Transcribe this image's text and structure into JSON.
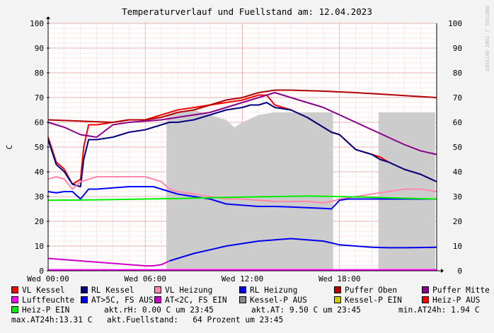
{
  "chart_data": {
    "type": "line",
    "title": "Temperaturverlauf und Fuellstand am: 12.04.2023",
    "ylabel": "C",
    "watermark": "RRDTOOL / TOBI OETIKER",
    "ylim": [
      0,
      100
    ],
    "y_ticks": [
      "0",
      "10",
      "20",
      "30",
      "40",
      "50",
      "60",
      "70",
      "80",
      "90",
      "100"
    ],
    "x_range_hours": [
      0,
      24
    ],
    "x_ticks": [
      {
        "hour": 0,
        "label": "Wed 00:00"
      },
      {
        "hour": 6,
        "label": "Wed 06:00"
      },
      {
        "hour": 12,
        "label": "Wed 12:00"
      },
      {
        "hour": 18,
        "label": "Wed 18:00"
      }
    ],
    "grid": true,
    "fill_area": {
      "name": "Fuellstand",
      "color": "#cccccc",
      "x": [
        0,
        7.3,
        7.31,
        8,
        9,
        10,
        11,
        11.5,
        12,
        13,
        14,
        15,
        16,
        17,
        17.6,
        17.61,
        20.4,
        20.41,
        21,
        22,
        23,
        23.9,
        23.91,
        24
      ],
      "y": [
        0,
        0,
        63,
        64,
        65,
        63,
        61,
        58,
        60,
        63,
        64,
        64,
        64,
        64,
        64,
        0,
        0,
        64,
        64,
        64,
        64,
        64,
        0,
        0
      ]
    },
    "series": [
      {
        "name": "VL Kessel",
        "color": "#ff0000",
        "width": 2,
        "x": [
          0,
          0.5,
          1,
          1.5,
          2,
          2.2,
          2.5,
          3,
          4,
          5,
          6,
          6.5,
          7,
          7.5,
          8,
          9,
          10,
          11,
          12,
          12.5,
          13,
          13.5,
          14,
          15,
          16,
          16.5,
          17,
          17.5,
          18,
          18.5,
          19,
          19.5,
          20,
          20.5,
          21,
          22,
          23,
          24
        ],
        "y": [
          54,
          44,
          41,
          35,
          37,
          50,
          59,
          59,
          60,
          61,
          61,
          62,
          63,
          64,
          65,
          66,
          67,
          68,
          69,
          70,
          71,
          71,
          67,
          65,
          62,
          60,
          58,
          56,
          55,
          52,
          49,
          48,
          47,
          46,
          44,
          41,
          39,
          36
        ]
      },
      {
        "name": "RL Kessel",
        "color": "#000080",
        "width": 2,
        "x": [
          0,
          0.5,
          1,
          1.5,
          2,
          2.2,
          2.5,
          3,
          4,
          5,
          6,
          6.5,
          7,
          7.5,
          8,
          9,
          10,
          11,
          12,
          12.5,
          13,
          13.5,
          14,
          15,
          16,
          16.5,
          17,
          17.5,
          18,
          18.5,
          19,
          19.5,
          20,
          20.5,
          21,
          22,
          23,
          24
        ],
        "y": [
          53,
          43,
          40,
          35,
          34,
          45,
          53,
          53,
          54,
          56,
          57,
          58,
          59,
          60,
          60,
          61,
          63,
          65,
          66,
          67,
          67,
          68,
          66,
          65,
          62,
          60,
          58,
          56,
          55,
          52,
          49,
          48,
          47,
          45,
          44,
          41,
          39,
          36
        ]
      },
      {
        "name": "VL Heizung",
        "color": "#ff88aa",
        "width": 2,
        "x": [
          0,
          0.5,
          1,
          1.5,
          2,
          3,
          4,
          5,
          6,
          6.5,
          7,
          7.5,
          8,
          9,
          10,
          11,
          12,
          13,
          14,
          15,
          16,
          17,
          17.5,
          18,
          19,
          20,
          21,
          22,
          23,
          24
        ],
        "y": [
          37,
          38,
          37,
          33,
          36,
          38,
          38,
          38,
          38,
          37,
          36,
          33,
          32,
          31,
          30,
          29,
          29,
          28.5,
          28,
          28,
          28,
          27.5,
          28,
          29,
          30,
          31,
          32,
          33,
          33,
          32
        ]
      },
      {
        "name": "RL Heizung",
        "color": "#0000ff",
        "width": 2,
        "x": [
          0,
          0.5,
          1,
          1.5,
          2,
          2.5,
          3,
          4,
          5,
          6,
          6.5,
          7,
          7.5,
          8,
          9,
          10,
          11,
          12,
          13,
          14,
          15,
          16,
          17,
          17.5,
          18,
          18.5,
          19,
          20,
          21,
          22,
          23,
          24
        ],
        "y": [
          32,
          31.5,
          32,
          32,
          29,
          33,
          33,
          33.5,
          34,
          34,
          34,
          33,
          32,
          31,
          30,
          29,
          27,
          26.5,
          26,
          26,
          25.8,
          25.5,
          25.2,
          25,
          28.5,
          29,
          29,
          29,
          29,
          29,
          29,
          29
        ]
      },
      {
        "name": "Puffer Oben",
        "color": "#b00000",
        "width": 2,
        "x": [
          0,
          2,
          4,
          5,
          6,
          7,
          8,
          9,
          10,
          11,
          12,
          13,
          14,
          15,
          16,
          17,
          18,
          19,
          20,
          21,
          22,
          23,
          24
        ],
        "y": [
          61,
          60.5,
          60,
          61,
          61,
          62,
          64,
          65,
          67,
          69,
          70,
          72,
          73,
          73,
          72.8,
          72.6,
          72.3,
          72,
          71.6,
          71.2,
          70.8,
          70.4,
          70
        ]
      },
      {
        "name": "Puffer Mitte",
        "color": "#880088",
        "width": 2,
        "x": [
          0,
          1,
          2,
          3,
          4,
          5,
          6,
          7,
          8,
          9,
          10,
          11,
          12,
          13,
          14,
          15,
          16,
          17,
          18,
          19,
          20,
          21,
          22,
          23,
          24
        ],
        "y": [
          60,
          58,
          55,
          54,
          59,
          60,
          60.5,
          61,
          62,
          63,
          64,
          66,
          68,
          70,
          72,
          70,
          68,
          66,
          63,
          60,
          57,
          54,
          51,
          48.5,
          47
        ]
      },
      {
        "name": "Luftfeuchte",
        "color": "#ff00ff",
        "width": 2,
        "x": [
          0,
          24
        ],
        "y": [
          0.4,
          0.4
        ]
      },
      {
        "name": "AT>5C, FS AUS",
        "color": "#0000ee",
        "width": 2,
        "x": [
          0,
          1,
          2,
          3,
          4,
          5,
          6,
          6.5,
          7,
          7.5,
          8,
          9,
          10,
          11,
          12,
          13,
          14,
          15,
          16,
          17,
          18,
          19,
          20,
          21,
          22,
          23,
          24
        ],
        "y": [
          null,
          null,
          null,
          null,
          null,
          null,
          null,
          null,
          null,
          4,
          5,
          7,
          8.5,
          10,
          11,
          12,
          12.5,
          13,
          12.5,
          12,
          10.5,
          10,
          9.5,
          9.3,
          9.3,
          9.4,
          9.5
        ]
      },
      {
        "name": "AT<2C, FS EIN",
        "color": "#cc00cc",
        "width": 2,
        "x": [
          0,
          1,
          2,
          3,
          4,
          5,
          6,
          6.5,
          7,
          7.5
        ],
        "y": [
          5,
          4.5,
          4,
          3.5,
          3,
          2.5,
          2,
          2,
          2.5,
          4
        ]
      },
      {
        "name": "Kessel-P AUS",
        "color": "#888888",
        "width": 2,
        "x": [],
        "y": []
      },
      {
        "name": "Kessel-P EIN",
        "color": "#cccc00",
        "width": 2,
        "x": [],
        "y": []
      },
      {
        "name": "Heiz-P AUS",
        "color": "#ff0000",
        "width": 2,
        "x": [],
        "y": []
      },
      {
        "name": "Heiz-P EIN",
        "color": "#00ee00",
        "width": 2,
        "x": [
          0,
          2,
          4,
          6,
          8,
          10,
          12,
          14,
          16,
          18,
          20,
          22,
          24
        ],
        "y": [
          28.5,
          28.6,
          28.8,
          29,
          29.2,
          29.5,
          29.8,
          30,
          30.2,
          30,
          29.7,
          29.3,
          29
        ]
      }
    ]
  },
  "legend": [
    [
      {
        "label": "VL Kessel",
        "color": "#ff0000"
      },
      {
        "label": "RL Kessel",
        "color": "#000080"
      },
      {
        "label": "VL Heizung",
        "color": "#ff88aa"
      },
      {
        "label": "RL Heizung",
        "color": "#0000ff"
      },
      {
        "label": "Puffer Oben",
        "color": "#b00000"
      },
      {
        "label": "Puffer Mitte",
        "color": "#880088"
      }
    ],
    [
      {
        "label": "Luftfeuchte",
        "color": "#ff00ff"
      },
      {
        "label": "AT>5C, FS AUS",
        "color": "#0000ee"
      },
      {
        "label": "AT<2C, FS EIN",
        "color": "#cc00cc"
      },
      {
        "label": "Kessel-P AUS",
        "color": "#888888"
      },
      {
        "label": "Kessel-P EIN",
        "color": "#cccc00"
      },
      {
        "label": "Heiz-P AUS",
        "color": "#ff0000"
      }
    ],
    [
      {
        "label": "Heiz-P EIN",
        "color": "#00ee00"
      }
    ]
  ],
  "info": {
    "rh": "akt.rH: 0.00 C um 23:45",
    "at": "akt.AT: 9.50 C um 23:45",
    "min": "min.AT24h: 1.94 C",
    "max": "max.AT24h:13.31 C",
    "fill": "akt.Fuellstand:   64 Prozent um 23:45"
  }
}
